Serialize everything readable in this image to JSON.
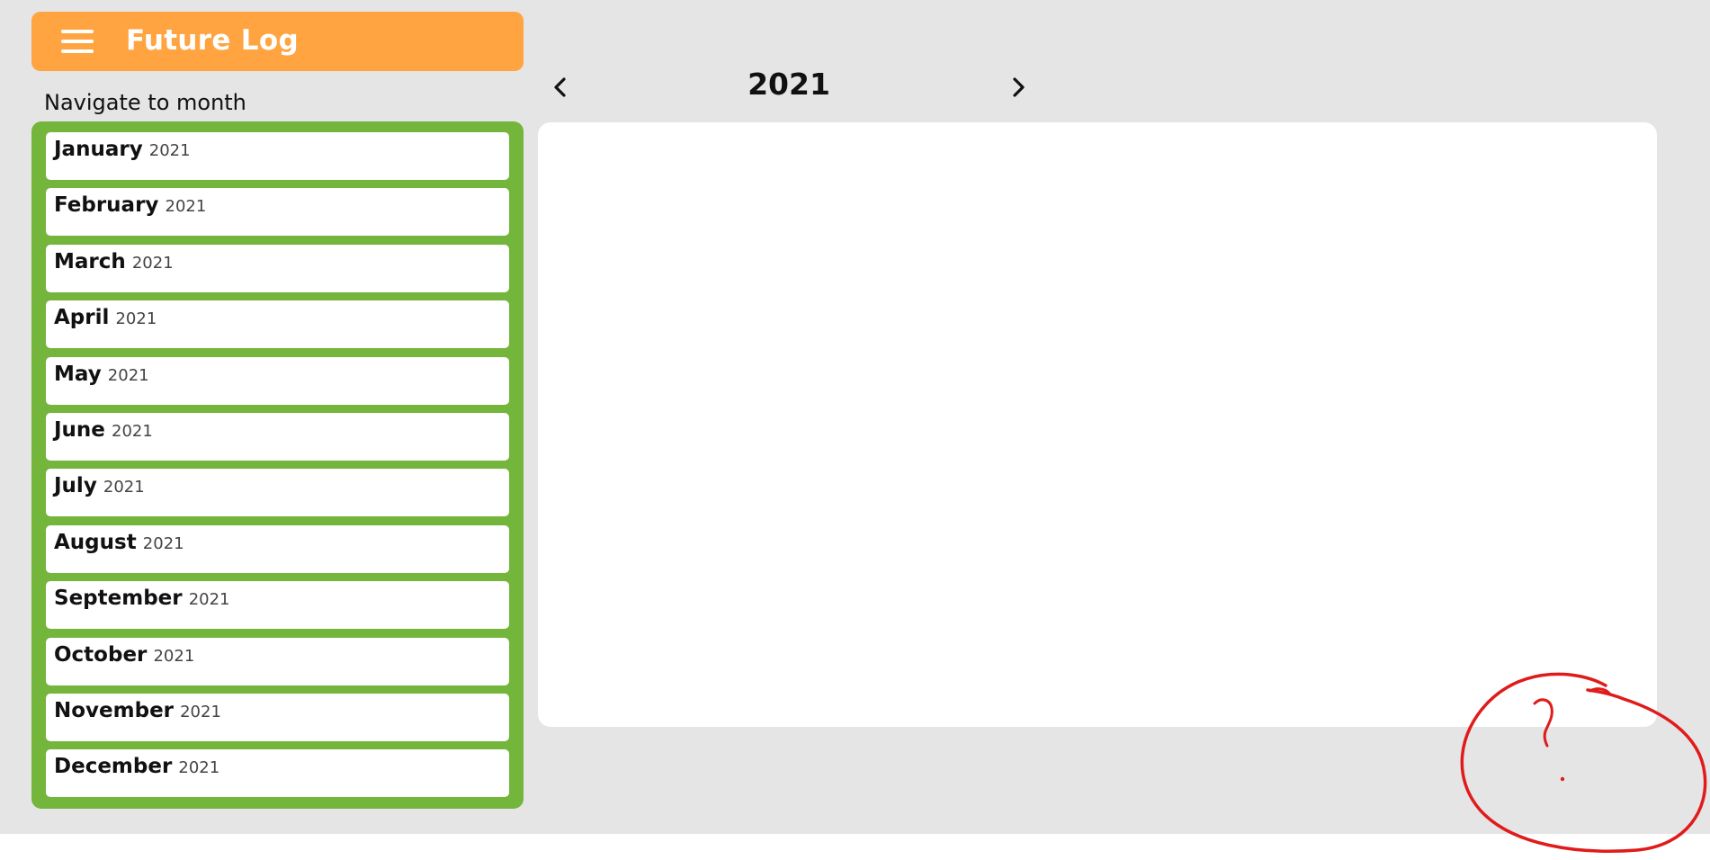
{
  "header": {
    "title": "Future Log",
    "menu_icon": "hamburger-menu-icon"
  },
  "nav_label": "Navigate to month",
  "year_nav": {
    "year": "2021",
    "prev_icon": "chevron-left-icon",
    "next_icon": "chevron-right-icon"
  },
  "months": [
    {
      "name": "January",
      "year": "2021"
    },
    {
      "name": "February",
      "year": "2021"
    },
    {
      "name": "March",
      "year": "2021"
    },
    {
      "name": "April",
      "year": "2021"
    },
    {
      "name": "May",
      "year": "2021"
    },
    {
      "name": "June",
      "year": "2021"
    },
    {
      "name": "July",
      "year": "2021"
    },
    {
      "name": "August",
      "year": "2021"
    },
    {
      "name": "September",
      "year": "2021"
    },
    {
      "name": "October",
      "year": "2021"
    },
    {
      "name": "November",
      "year": "2021"
    },
    {
      "name": "December",
      "year": "2021"
    }
  ],
  "annotation": {
    "text": "?"
  },
  "colors": {
    "header": "#ffa440",
    "month_panel": "#74b53b",
    "background": "#e5e5e5",
    "annotation": "#e01b1b"
  }
}
